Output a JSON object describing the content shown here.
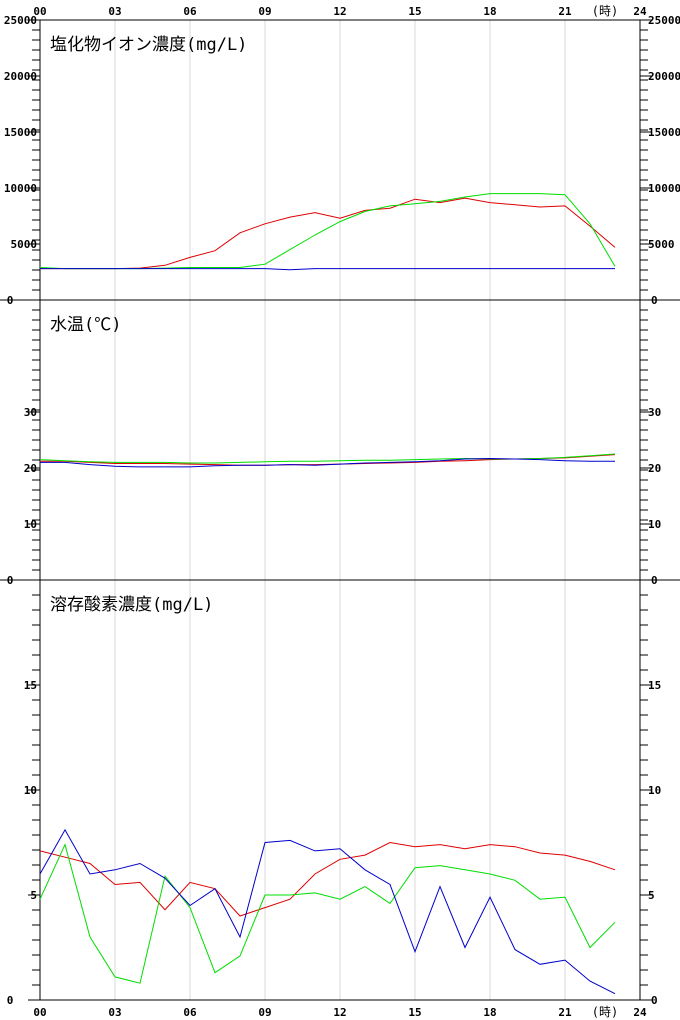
{
  "x_axis": {
    "ticks": [
      "00",
      "03",
      "06",
      "09",
      "12",
      "15",
      "18",
      "21",
      "24"
    ],
    "unit_label": "(時)"
  },
  "colors": {
    "series_1": "#dd0000",
    "series_2": "#00dd00",
    "series_3": "#0000cc"
  },
  "chart_data": [
    {
      "type": "line",
      "title": "塩化物イオン濃度(mg/L)",
      "ylim": [
        0,
        25000
      ],
      "y_ticks": [
        "25000",
        "20000",
        "15000",
        "10000",
        "5000",
        "0"
      ],
      "grid": true,
      "x": [
        0,
        1,
        2,
        3,
        4,
        5,
        6,
        7,
        8,
        9,
        10,
        11,
        12,
        13,
        14,
        15,
        16,
        17,
        18,
        19,
        20,
        21,
        22,
        23
      ],
      "series": [
        {
          "color": "#dd0000",
          "values": [
            2800,
            2800,
            2800,
            2800,
            2850,
            3100,
            3800,
            4400,
            6000,
            6800,
            7400,
            7800,
            7300,
            8000,
            8200,
            9000,
            8700,
            9100,
            8700,
            8500,
            8300,
            8400,
            6600,
            4700
          ]
        },
        {
          "color": "#00dd00",
          "values": [
            2900,
            2800,
            2800,
            2800,
            2800,
            2850,
            2900,
            2900,
            2900,
            3200,
            4500,
            5800,
            7000,
            7900,
            8400,
            8600,
            8800,
            9200,
            9500,
            9500,
            9500,
            9400,
            6800,
            3000
          ]
        },
        {
          "color": "#0000cc",
          "values": [
            2800,
            2800,
            2800,
            2800,
            2800,
            2800,
            2800,
            2800,
            2800,
            2800,
            2700,
            2800,
            2800,
            2800,
            2800,
            2800,
            2800,
            2800,
            2800,
            2800,
            2800,
            2800,
            2800,
            2800
          ]
        }
      ]
    },
    {
      "type": "line",
      "title": "水温(℃)",
      "ylim": [
        0,
        50
      ],
      "y_ticks": [
        "30",
        "20",
        "10",
        "0"
      ],
      "grid": true,
      "x": [
        0,
        1,
        2,
        3,
        4,
        5,
        6,
        7,
        8,
        9,
        10,
        11,
        12,
        13,
        14,
        15,
        16,
        17,
        18,
        19,
        20,
        21,
        22,
        23
      ],
      "series": [
        {
          "color": "#dd0000",
          "values": [
            21.2,
            21.2,
            21.0,
            20.8,
            20.8,
            20.8,
            20.7,
            20.6,
            20.5,
            20.5,
            20.6,
            20.6,
            20.7,
            20.8,
            20.9,
            21.0,
            21.2,
            21.3,
            21.5,
            21.6,
            21.7,
            21.8,
            22.1,
            22.4
          ]
        },
        {
          "color": "#00dd00",
          "values": [
            21.5,
            21.3,
            21.1,
            21.0,
            21.0,
            21.0,
            20.9,
            20.9,
            21.0,
            21.1,
            21.2,
            21.2,
            21.3,
            21.4,
            21.4,
            21.5,
            21.6,
            21.7,
            21.6,
            21.6,
            21.7,
            21.9,
            22.2,
            22.5
          ]
        },
        {
          "color": "#0000cc",
          "values": [
            21.0,
            21.0,
            20.6,
            20.3,
            20.2,
            20.2,
            20.2,
            20.4,
            20.5,
            20.5,
            20.6,
            20.5,
            20.7,
            20.9,
            21.0,
            21.1,
            21.3,
            21.6,
            21.7,
            21.6,
            21.5,
            21.3,
            21.2,
            21.2
          ]
        }
      ]
    },
    {
      "type": "line",
      "title": "溶存酸素濃度(mg/L)",
      "ylim": [
        0,
        20
      ],
      "y_ticks": [
        "15",
        "10",
        "5",
        "0"
      ],
      "grid": true,
      "x": [
        0,
        1,
        2,
        3,
        4,
        5,
        6,
        7,
        8,
        9,
        10,
        11,
        12,
        13,
        14,
        15,
        16,
        17,
        18,
        19,
        20,
        21,
        22,
        23
      ],
      "series": [
        {
          "color": "#dd0000",
          "values": [
            7.1,
            6.8,
            6.5,
            5.5,
            5.6,
            4.3,
            5.6,
            5.3,
            4.0,
            4.4,
            4.8,
            6.0,
            6.7,
            6.9,
            7.5,
            7.3,
            7.4,
            7.2,
            7.4,
            7.3,
            7.0,
            6.9,
            6.6,
            6.2
          ]
        },
        {
          "color": "#00dd00",
          "values": [
            4.8,
            7.4,
            3.0,
            1.1,
            0.8,
            5.9,
            4.4,
            1.3,
            2.1,
            5.0,
            5.0,
            5.1,
            4.8,
            5.4,
            4.6,
            6.3,
            6.4,
            6.2,
            6.0,
            5.7,
            4.8,
            4.9,
            2.5,
            3.7
          ]
        },
        {
          "color": "#0000cc",
          "values": [
            6.0,
            8.1,
            6.0,
            6.2,
            6.5,
            5.8,
            4.5,
            5.3,
            3.0,
            7.5,
            7.6,
            7.1,
            7.2,
            6.2,
            5.5,
            2.3,
            5.4,
            2.5,
            4.9,
            2.4,
            1.7,
            1.9,
            0.9,
            0.3
          ]
        }
      ]
    }
  ]
}
